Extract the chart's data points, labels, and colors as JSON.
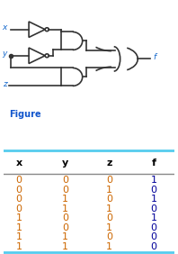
{
  "title": "Figure",
  "headers": [
    "x",
    "y",
    "z",
    "f"
  ],
  "rows": [
    [
      0,
      0,
      0,
      1
    ],
    [
      0,
      0,
      1,
      0
    ],
    [
      0,
      1,
      0,
      1
    ],
    [
      0,
      1,
      1,
      0
    ],
    [
      1,
      0,
      0,
      1
    ],
    [
      1,
      0,
      1,
      0
    ],
    [
      1,
      1,
      0,
      0
    ],
    [
      1,
      1,
      1,
      0
    ]
  ],
  "header_color": "#000000",
  "data_color_xyz": "#cc6600",
  "data_color_f": "#000099",
  "line_color_top": "#55ccee",
  "line_color_bottom": "#55ccee",
  "line_color_header_sep": "#888888",
  "figure_label_color": "#1155cc",
  "signal_color": "#1166cc",
  "bg_color": "#ffffff",
  "lc": "#333333",
  "figsize": [
    1.98,
    2.82
  ],
  "dpi": 100
}
